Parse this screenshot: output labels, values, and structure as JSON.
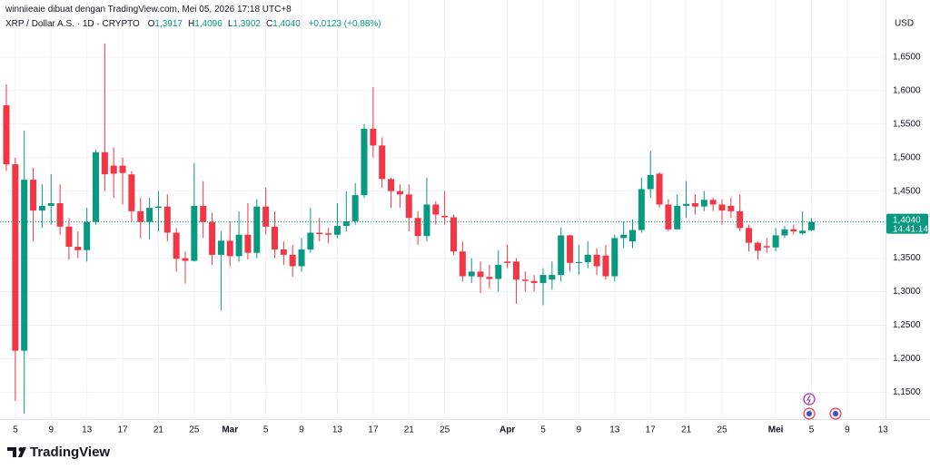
{
  "header": {
    "credit": "winniieaie dibuat dengan TradingView.com, Mei 05, 2026 17:18 UTC+8",
    "symbol": "XRP / Dollar A.S. · 1D · CRYPTO",
    "ohlc": [
      {
        "label": "O",
        "value": "1,3917"
      },
      {
        "label": "H",
        "value": "1,4096"
      },
      {
        "label": "L",
        "value": "1,3902"
      },
      {
        "label": "C",
        "value": "1,4040"
      }
    ],
    "change": "+0,0123 (+0,88%)"
  },
  "logo": "TradingView",
  "chart_data": {
    "type": "candlestick",
    "currency": "USD",
    "up_color": "#089981",
    "down_color": "#f23645",
    "grid": true,
    "last_price": {
      "value": 1.404,
      "label": "1,4040"
    },
    "countdown": "14:41:14",
    "ylim": [
      1.11,
      1.735
    ],
    "yticks": [
      {
        "value": 1.15,
        "label": "1,1500"
      },
      {
        "value": 1.2,
        "label": "1,2000"
      },
      {
        "value": 1.25,
        "label": "1,2500"
      },
      {
        "value": 1.3,
        "label": "1,3000"
      },
      {
        "value": 1.35,
        "label": "1,3500"
      },
      {
        "value": 1.4,
        "label": "1,4000"
      },
      {
        "value": 1.45,
        "label": "1,4500"
      },
      {
        "value": 1.5,
        "label": "1,5000"
      },
      {
        "value": 1.55,
        "label": "1,5500"
      },
      {
        "value": 1.6,
        "label": "1,6000"
      },
      {
        "value": 1.65,
        "label": "1,6500"
      }
    ],
    "categories": [
      null,
      "5",
      null,
      null,
      null,
      "9",
      null,
      null,
      null,
      "13",
      null,
      null,
      null,
      "17",
      null,
      null,
      null,
      "21",
      null,
      null,
      null,
      "25",
      null,
      null,
      null,
      "Mar",
      null,
      null,
      null,
      "5",
      null,
      null,
      null,
      "9",
      null,
      null,
      null,
      "13",
      null,
      null,
      null,
      "17",
      null,
      null,
      null,
      "21",
      null,
      null,
      null,
      "25",
      null,
      null,
      null,
      null,
      null,
      null,
      "Apr",
      null,
      null,
      null,
      "5",
      null,
      null,
      null,
      "9",
      null,
      null,
      null,
      "13",
      null,
      null,
      null,
      "17",
      null,
      null,
      null,
      "21",
      null,
      null,
      null,
      "25",
      null,
      null,
      null,
      null,
      null,
      "Mei",
      null,
      null,
      null,
      "5",
      null,
      null,
      null,
      "9",
      null,
      null,
      null,
      "13"
    ],
    "open": [
      1.578,
      1.49,
      1.212,
      1.467,
      1.421,
      1.428,
      1.432,
      1.397,
      1.367,
      1.362,
      1.404,
      1.508,
      1.488,
      1.488,
      1.475,
      1.42,
      1.404,
      1.425,
      1.427,
      1.388,
      1.35,
      1.346,
      1.428,
      1.404,
      1.355,
      1.376,
      1.353,
      1.385,
      1.358,
      1.427,
      1.397,
      1.363,
      1.355,
      1.338,
      1.363,
      1.388,
      1.387,
      1.385,
      1.398,
      1.405,
      1.444,
      1.543,
      1.518,
      1.468,
      1.45,
      1.445,
      1.41,
      1.383,
      1.43,
      1.413,
      1.411,
      1.36,
      1.323,
      1.33,
      1.322,
      1.319,
      1.345,
      1.345,
      1.318,
      1.316,
      1.313,
      1.318,
      1.325,
      1.384,
      1.343,
      1.344,
      1.355,
      1.354,
      1.323,
      1.38,
      1.375,
      1.392,
      1.453,
      1.476,
      1.43,
      1.393,
      1.428,
      1.432,
      1.427,
      1.437,
      1.43,
      1.428,
      1.42,
      1.395,
      1.373,
      1.368,
      1.366,
      1.384,
      1.393,
      1.387,
      1.3917,
      null,
      null,
      null,
      null,
      null,
      null,
      null,
      null
    ],
    "high": [
      1.609,
      1.5,
      1.54,
      1.485,
      1.46,
      1.475,
      1.46,
      1.41,
      1.39,
      1.425,
      1.512,
      1.67,
      1.515,
      1.5,
      1.48,
      1.44,
      1.44,
      1.45,
      1.445,
      1.395,
      1.36,
      1.492,
      1.465,
      1.418,
      1.39,
      1.405,
      1.42,
      1.432,
      1.438,
      1.455,
      1.42,
      1.375,
      1.37,
      1.38,
      1.425,
      1.41,
      1.395,
      1.432,
      1.45,
      1.462,
      1.55,
      1.605,
      1.53,
      1.47,
      1.46,
      1.46,
      1.42,
      1.47,
      1.435,
      1.45,
      1.415,
      1.375,
      1.35,
      1.345,
      1.34,
      1.362,
      1.37,
      1.35,
      1.33,
      1.325,
      1.335,
      1.345,
      1.396,
      1.385,
      1.37,
      1.375,
      1.365,
      1.37,
      1.385,
      1.405,
      1.408,
      1.47,
      1.51,
      1.478,
      1.438,
      1.445,
      1.465,
      1.445,
      1.45,
      1.44,
      1.438,
      1.44,
      1.445,
      1.4,
      1.375,
      1.38,
      1.395,
      1.398,
      1.4,
      1.42,
      1.4096,
      null,
      null,
      null,
      null,
      null,
      null,
      null,
      null
    ],
    "low": [
      1.48,
      1.137,
      1.118,
      1.375,
      1.395,
      1.4,
      1.385,
      1.348,
      1.35,
      1.345,
      1.4,
      1.45,
      1.44,
      1.43,
      1.405,
      1.38,
      1.378,
      1.39,
      1.375,
      1.33,
      1.312,
      1.345,
      1.38,
      1.34,
      1.272,
      1.338,
      1.345,
      1.348,
      1.35,
      1.385,
      1.35,
      1.34,
      1.322,
      1.33,
      1.358,
      1.375,
      1.372,
      1.38,
      1.39,
      1.4,
      1.44,
      1.5,
      1.455,
      1.425,
      1.425,
      1.39,
      1.37,
      1.375,
      1.4,
      1.4,
      1.355,
      1.315,
      1.313,
      1.298,
      1.305,
      1.3,
      1.335,
      1.282,
      1.3,
      1.3,
      1.28,
      1.303,
      1.315,
      1.33,
      1.325,
      1.335,
      1.325,
      1.318,
      1.315,
      1.365,
      1.365,
      1.388,
      1.44,
      1.425,
      1.39,
      1.395,
      1.41,
      1.415,
      1.42,
      1.42,
      1.4,
      1.41,
      1.39,
      1.36,
      1.348,
      1.358,
      1.36,
      1.38,
      1.385,
      1.385,
      1.3902,
      null,
      null,
      null,
      null,
      null,
      null,
      null,
      null
    ],
    "close": [
      1.49,
      1.212,
      1.467,
      1.421,
      1.428,
      1.432,
      1.397,
      1.367,
      1.362,
      1.404,
      1.508,
      1.475,
      1.476,
      1.477,
      1.42,
      1.404,
      1.425,
      1.427,
      1.388,
      1.349,
      1.346,
      1.428,
      1.404,
      1.355,
      1.376,
      1.353,
      1.385,
      1.358,
      1.427,
      1.397,
      1.363,
      1.355,
      1.338,
      1.363,
      1.388,
      1.386,
      1.385,
      1.398,
      1.405,
      1.444,
      1.543,
      1.518,
      1.468,
      1.45,
      1.445,
      1.41,
      1.383,
      1.43,
      1.415,
      1.411,
      1.36,
      1.323,
      1.33,
      1.322,
      1.319,
      1.34,
      1.343,
      1.318,
      1.316,
      1.313,
      1.325,
      1.325,
      1.384,
      1.343,
      1.344,
      1.355,
      1.338,
      1.323,
      1.38,
      1.385,
      1.392,
      1.453,
      1.474,
      1.43,
      1.393,
      1.428,
      1.431,
      1.427,
      1.437,
      1.43,
      1.421,
      1.42,
      1.395,
      1.373,
      1.361,
      1.366,
      1.384,
      1.393,
      1.39,
      1.391,
      1.404,
      null,
      null,
      null,
      null,
      null,
      null,
      null,
      null
    ]
  }
}
